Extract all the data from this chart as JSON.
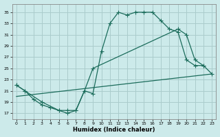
{
  "xlabel": "Humidex (Indice chaleur)",
  "background_color": "#cceaea",
  "grid_color": "#aacccc",
  "line_color": "#1a6b5a",
  "xlim": [
    -0.5,
    23.5
  ],
  "ylim": [
    16,
    36.5
  ],
  "yticks": [
    17,
    19,
    21,
    23,
    25,
    27,
    29,
    31,
    33,
    35
  ],
  "xticks": [
    0,
    1,
    2,
    3,
    4,
    5,
    6,
    7,
    8,
    9,
    10,
    11,
    12,
    13,
    14,
    15,
    16,
    17,
    18,
    19,
    20,
    21,
    22,
    23
  ],
  "line1_x": [
    0,
    1,
    2,
    3,
    4,
    5,
    6,
    7,
    8,
    9,
    10,
    11,
    12,
    13,
    14,
    15,
    16,
    17,
    18,
    19,
    20,
    21,
    22
  ],
  "line1_y": [
    22,
    21,
    19.5,
    18.5,
    18,
    17.5,
    17,
    17.5,
    21,
    20.5,
    28,
    33,
    35,
    34.5,
    35,
    35,
    35,
    33.5,
    32,
    31.5,
    26.5,
    25.5,
    25.5
  ],
  "line2_x": [
    0,
    1,
    3,
    5,
    6,
    7,
    8,
    9,
    19,
    20,
    21,
    22,
    23
  ],
  "line2_y": [
    22,
    21,
    19,
    17.5,
    17.5,
    17.5,
    21,
    25,
    32,
    31,
    26.5,
    25.5,
    24
  ],
  "line3_x": [
    0,
    23
  ],
  "line3_y": [
    20,
    24
  ]
}
